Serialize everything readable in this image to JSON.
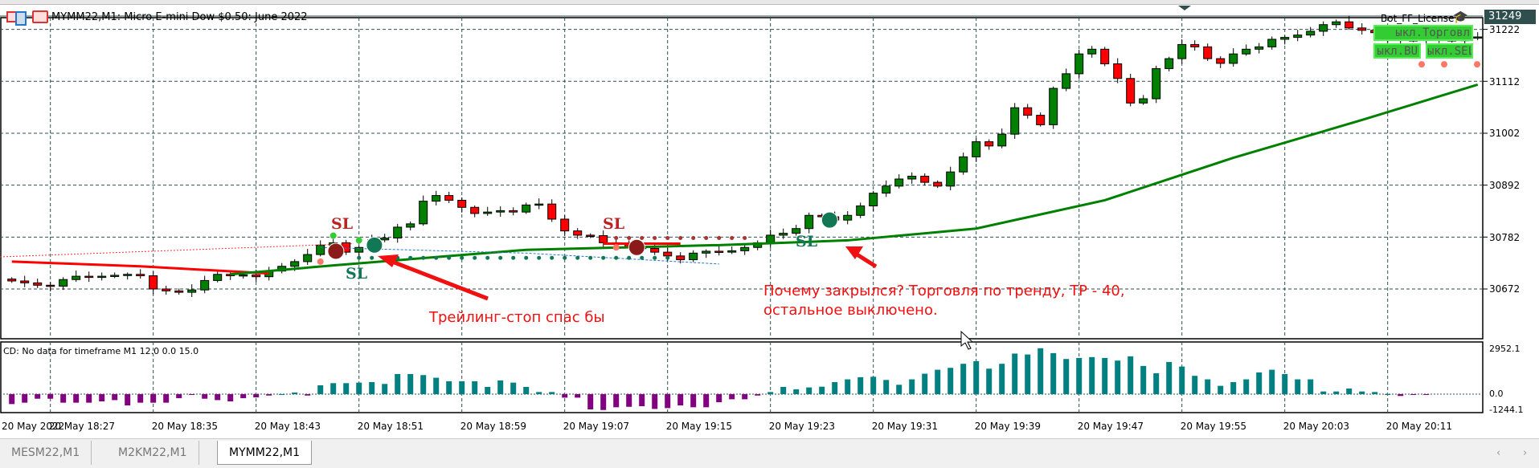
{
  "window": {
    "title": "MYMM22,M1:  Micro E-mini Dow $0.50: June 2022"
  },
  "panel": {
    "license": "Bot_FF_License",
    "btn_trade": "ыкл.Торговл",
    "btn_buy": "ыкл.BU",
    "btn_sell": "ыкл.SEL"
  },
  "price_axis": {
    "current": "31249",
    "levels": [
      "31222",
      "31112",
      "31002",
      "30892",
      "30782",
      "30672"
    ]
  },
  "indicator": {
    "label": "CD: No data for timeframe M1 12.0 0.0 15.0",
    "levels": [
      "2952.1",
      "0.0",
      "-1244.1"
    ]
  },
  "time_axis": [
    "20 May 2022",
    "20 May 18:27",
    "20 May 18:35",
    "20 May 18:43",
    "20 May 18:51",
    "20 May 18:59",
    "20 May 19:07",
    "20 May 19:15",
    "20 May 19:23",
    "20 May 19:31",
    "20 May 19:39",
    "20 May 19:47",
    "20 May 19:55",
    "20 May 20:03",
    "20 May 20:11"
  ],
  "annotations": {
    "note1": "Трейлинг-стоп спас бы",
    "note2_line1": "Почему закрылся? Торговля по тренду, TP - 40,",
    "note2_line2": "остальное выключено.",
    "sl": "SL"
  },
  "tabs": [
    "MESM22,M1",
    "M2KM22,M1",
    "MYMM22,M1"
  ],
  "active_tab": 2,
  "colors": {
    "bull": "#008000",
    "bear": "#ff0000",
    "hist_pos": "#008080",
    "hist_neg": "#800080",
    "ma": "#008000",
    "ma_red": "#ff0000"
  },
  "chart_data": {
    "type": "candlestick",
    "closes": [
      30689,
      30685,
      30680,
      30678,
      30692,
      30699,
      30697,
      30699,
      30701,
      30703,
      30700,
      30672,
      30668,
      30665,
      30670,
      30690,
      30703,
      30700,
      30702,
      30698,
      30710,
      30720,
      30730,
      30745,
      30765,
      30770,
      30750,
      30760,
      30776,
      30780,
      30803,
      30810,
      30858,
      30870,
      30860,
      30845,
      30832,
      30835,
      30838,
      30835,
      30850,
      30852,
      30820,
      30795,
      30786,
      30785,
      30770,
      30768,
      30760,
      30758,
      30750,
      30742,
      30734,
      30748,
      30752,
      30750,
      30753,
      30760,
      30770,
      30786,
      30790,
      30800,
      30828,
      30825,
      30818,
      30828,
      30848,
      30875,
      30890,
      30905,
      30911,
      30898,
      30890,
      30920,
      30952,
      30984,
      30975,
      31000,
      31056,
      31040,
      31020,
      31097,
      31128,
      31170,
      31180,
      31149,
      31118,
      31066,
      31075,
      31139,
      31160,
      31190,
      31185,
      31160,
      31150,
      31170,
      31180,
      31185,
      31201,
      31205,
      31210,
      31218,
      31232,
      31238,
      31225,
      31220,
      31215,
      31205,
      31200,
      31200,
      31202,
      31200,
      31198,
      31205,
      31206
    ],
    "ma_green": [
      [
        17,
        30703
      ],
      [
        25,
        30722
      ],
      [
        40,
        30755
      ],
      [
        55,
        30765
      ],
      [
        65,
        30775
      ],
      [
        75,
        30800
      ],
      [
        85,
        30860
      ],
      [
        95,
        30950
      ],
      [
        105,
        31030
      ],
      [
        114,
        31105
      ]
    ],
    "ma_red": [
      [
        0,
        30730
      ],
      [
        10,
        30720
      ],
      [
        20,
        30705
      ]
    ],
    "cd_histogram": [
      -650,
      -560,
      -300,
      -300,
      -560,
      -560,
      -560,
      -475,
      -390,
      -740,
      -560,
      -560,
      -560,
      -265,
      -35,
      -300,
      -390,
      -475,
      -265,
      -210,
      -90,
      0,
      105,
      -90,
      580,
      720,
      720,
      755,
      790,
      670,
      1320,
      1320,
      1250,
      1075,
      845,
      845,
      845,
      475,
      900,
      755,
      475,
      140,
      140,
      -230,
      -230,
      -1000,
      -1040,
      -860,
      -830,
      -790,
      -970,
      -915,
      -740,
      -860,
      -860,
      -530,
      -335,
      -335,
      -90,
      140,
      475,
      315,
      440,
      490,
      790,
      970,
      1110,
      1140,
      930,
      615,
      970,
      1340,
      1600,
      1725,
      1990,
      2165,
      1670,
      1990,
      2660,
      2600,
      3010,
      2690,
      2305,
      2375,
      2430,
      2375,
      2200,
      2480,
      1850,
      1370,
      2110,
      1810,
      1200,
      970,
      545,
      790,
      970,
      1425,
      1600,
      1320,
      970,
      970,
      175,
      175,
      370,
      175,
      140,
      0,
      -120,
      -35,
      -35
    ],
    "price_range": [
      30600,
      31260
    ]
  }
}
